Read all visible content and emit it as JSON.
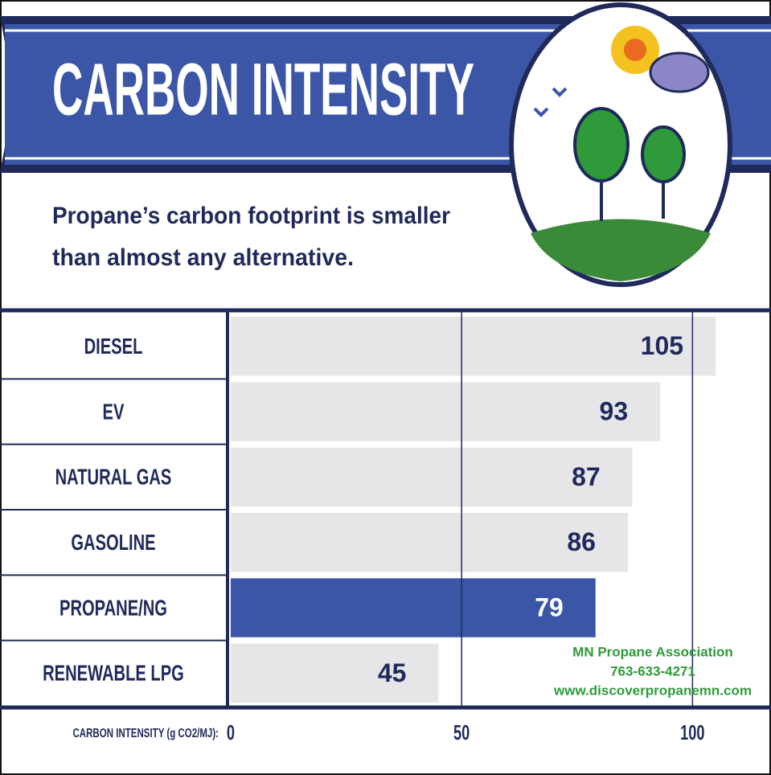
{
  "chart_data": {
    "type": "bar",
    "orientation": "horizontal",
    "title": "CARBON INTENSITY",
    "subtitle": [
      "Propane’s carbon footprint is smaller",
      "than almost any alternative."
    ],
    "categories": [
      "DIESEL",
      "EV",
      "NATURAL GAS",
      "GASOLINE",
      "PROPANE/NG",
      "RENEWABLE LPG"
    ],
    "values": [
      105,
      93,
      87,
      86,
      79,
      45
    ],
    "colors": [
      "#e6e6e9",
      "#e6e6e9",
      "#e6e6e9",
      "#e6e6e9",
      "#3b56a6",
      "#e6e6e9"
    ],
    "xlabel": "CARBON INTENSITY (g CO2/MJ):",
    "xlim": [
      0,
      117
    ],
    "xticks": [
      0,
      50,
      100
    ],
    "grid": true,
    "annotation": [
      "MN Propane Association",
      "763-633-4271",
      "www.discoverpropanemn.com"
    ]
  }
}
